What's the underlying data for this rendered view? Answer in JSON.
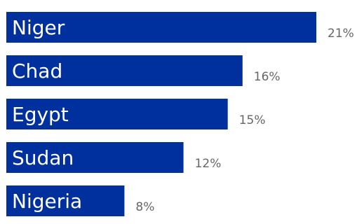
{
  "chart_data": {
    "type": "bar",
    "orientation": "horizontal",
    "categories": [
      "Niger",
      "Chad",
      "Egypt",
      "Sudan",
      "Nigeria"
    ],
    "values": [
      21,
      16,
      15,
      12,
      8
    ],
    "value_labels": [
      "21%",
      "16%",
      "15%",
      "12%",
      "8%"
    ],
    "unit": "%",
    "title": "",
    "xlabel": "",
    "ylabel": "",
    "xlim": [
      0,
      21
    ],
    "grid": false,
    "legend": "none"
  },
  "colors": {
    "bar": "#00309e",
    "bar_label": "#ffffff",
    "value_label": "#666666"
  }
}
